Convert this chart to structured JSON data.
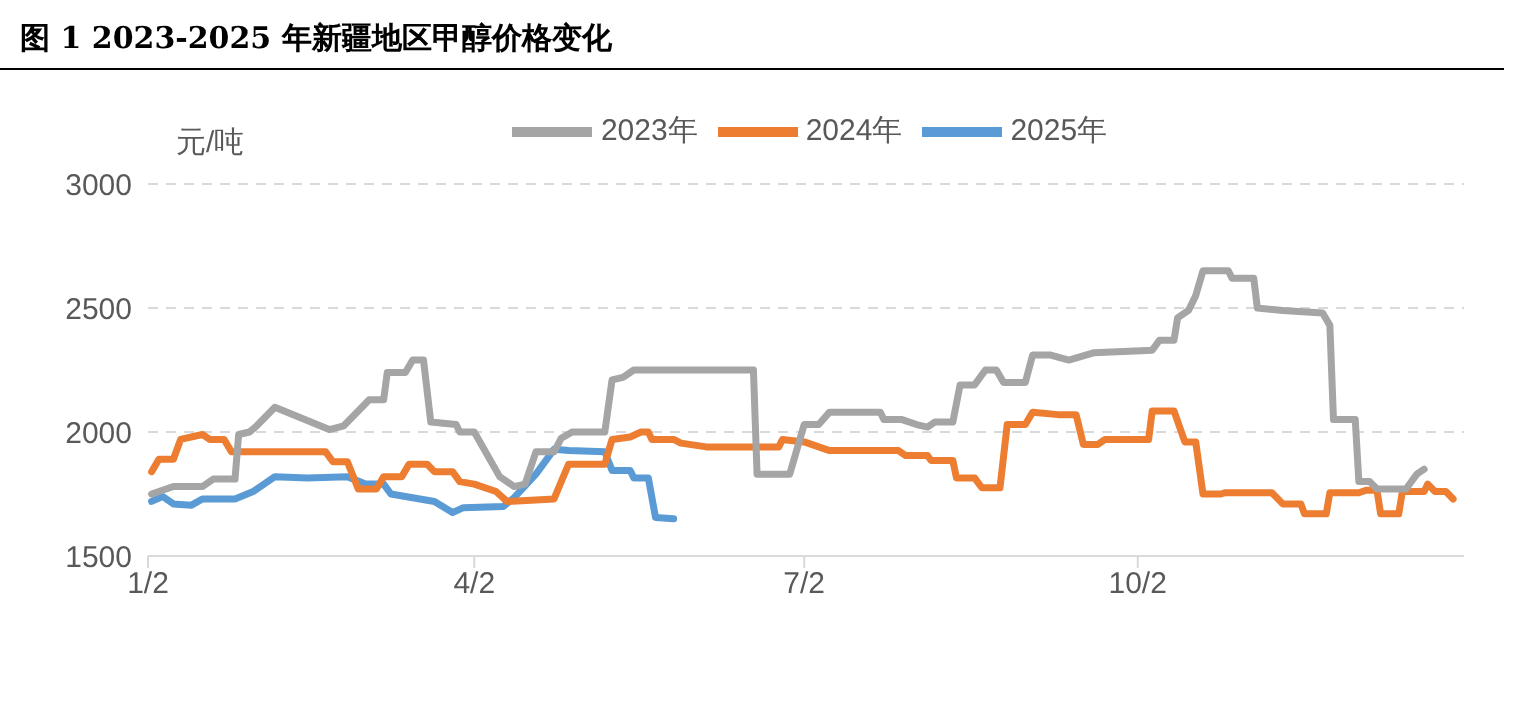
{
  "chart_data": {
    "type": "line",
    "title": "图 1 2023-2025 年新疆地区甲醇价格变化",
    "ylabel": "元/吨",
    "xlim": [
      "--01-02",
      "--12-31"
    ],
    "xticks": [
      {
        "value": "--01-02",
        "label": "1/2"
      },
      {
        "value": "--04-02",
        "label": "4/2"
      },
      {
        "value": "--07-02",
        "label": "7/2"
      },
      {
        "value": "--10-02",
        "label": "10/2"
      }
    ],
    "ylim": [
      1500,
      3000
    ],
    "yticks": [
      1500,
      2000,
      2500,
      3000
    ],
    "grid": "y",
    "legend": "top",
    "marker": "none",
    "line_style": "solid",
    "series": [
      {
        "name": "2025年",
        "color": "#5b9bd5",
        "x": [
          "--01-03",
          "--01-06",
          "--01-09",
          "--01-14",
          "--01-17",
          "--01-26",
          "--01-31",
          "--02-03",
          "--02-06",
          "--02-15",
          "--02-26",
          "--03-03",
          "--03-08",
          "--03-10",
          "--03-16",
          "--03-22",
          "--03-27",
          "--03-30",
          "--04-10",
          "--04-13",
          "--04-19",
          "--04-24",
          "--04-28",
          "--05-08",
          "--05-10",
          "--05-15",
          "--05-16",
          "--05-20",
          "--05-22",
          "--05-27"
        ],
        "values": [
          1720,
          1740,
          1710,
          1705,
          1730,
          1730,
          1760,
          1790,
          1820,
          1815,
          1820,
          1790,
          1790,
          1750,
          1735,
          1720,
          1675,
          1695,
          1700,
          1735,
          1830,
          1930,
          1925,
          1920,
          1845,
          1845,
          1815,
          1815,
          1655,
          1650
        ]
      },
      {
        "name": "2024年",
        "color": "#ed7d31",
        "x": [
          "--01-03",
          "--01-05",
          "--01-09",
          "--01-11",
          "--01-17",
          "--01-19",
          "--01-23",
          "--01-25",
          "--02-20",
          "--02-22",
          "--02-26",
          "--03-01",
          "--03-06",
          "--03-08",
          "--03-13",
          "--03-15",
          "--03-20",
          "--03-22",
          "--03-27",
          "--03-29",
          "--04-02",
          "--04-08",
          "--04-11",
          "--04-24",
          "--04-28",
          "--05-08",
          "--05-10",
          "--05-15",
          "--05-18",
          "--05-20",
          "--05-21",
          "--05-27",
          "--05-29",
          "--06-05",
          "--06-25",
          "--06-26",
          "--07-02",
          "--07-04",
          "--07-09",
          "--07-28",
          "--07-30",
          "--08-05",
          "--08-06",
          "--08-12",
          "--08-13",
          "--08-18",
          "--08-20",
          "--08-25",
          "--08-27",
          "--09-01",
          "--09-03",
          "--09-10",
          "--09-15",
          "--09-17",
          "--09-21",
          "--09-23",
          "--10-05",
          "--10-06",
          "--10-12",
          "--10-15",
          "--10-18",
          "--10-20",
          "--10-25",
          "--10-26",
          "--11-08",
          "--11-11",
          "--11-16",
          "--11-17",
          "--11-23",
          "--11-24",
          "--12-02",
          "--12-04",
          "--12-07",
          "--12-08",
          "--12-13",
          "--12-14",
          "--12-20",
          "--12-21",
          "--12-23",
          "--12-26",
          "--12-28"
        ],
        "values": [
          1840,
          1890,
          1890,
          1970,
          1990,
          1970,
          1970,
          1920,
          1920,
          1880,
          1880,
          1770,
          1770,
          1820,
          1820,
          1870,
          1870,
          1840,
          1840,
          1800,
          1790,
          1760,
          1720,
          1730,
          1870,
          1870,
          1970,
          1980,
          2000,
          2000,
          1970,
          1970,
          1955,
          1940,
          1940,
          1970,
          1960,
          1950,
          1925,
          1925,
          1905,
          1905,
          1885,
          1885,
          1815,
          1815,
          1775,
          1775,
          2030,
          2030,
          2080,
          2070,
          2070,
          1950,
          1950,
          1970,
          1970,
          2085,
          2085,
          1960,
          1960,
          1750,
          1750,
          1755,
          1755,
          1710,
          1710,
          1670,
          1670,
          1755,
          1755,
          1765,
          1765,
          1670,
          1670,
          1760,
          1760,
          1790,
          1760,
          1760,
          1730
        ]
      },
      {
        "name": "2023年",
        "color": "#a5a5a5",
        "x": [
          "--01-03",
          "--01-09",
          "--01-17",
          "--01-20",
          "--01-26",
          "--01-27",
          "--01-30",
          "--02-01",
          "--02-06",
          "--02-21",
          "--02-25",
          "--03-02",
          "--03-04",
          "--03-08",
          "--03-09",
          "--03-14",
          "--03-16",
          "--03-19",
          "--03-21",
          "--03-28",
          "--03-29",
          "--04-02",
          "--04-09",
          "--04-13",
          "--04-16",
          "--04-19",
          "--04-24",
          "--04-26",
          "--04-29",
          "--05-08",
          "--05-10",
          "--05-13",
          "--05-16",
          "--06-18",
          "--06-19",
          "--06-28",
          "--07-02",
          "--07-06",
          "--07-09",
          "--07-23",
          "--07-24",
          "--07-29",
          "--08-02",
          "--08-05",
          "--08-07",
          "--08-12",
          "--08-14",
          "--08-18",
          "--08-21",
          "--08-24",
          "--08-26",
          "--09-01",
          "--09-03",
          "--09-08",
          "--09-13",
          "--09-20",
          "--10-06",
          "--10-08",
          "--10-12",
          "--10-13",
          "--10-16",
          "--10-18",
          "--10-20",
          "--10-27",
          "--10-28",
          "--11-03",
          "--11-04",
          "--11-11",
          "--11-22",
          "--11-24",
          "--11-25",
          "--12-01",
          "--12-02",
          "--12-05",
          "--12-07",
          "--12-15",
          "--12-18",
          "--12-20"
        ],
        "values": [
          1750,
          1780,
          1780,
          1810,
          1810,
          1990,
          2000,
          2025,
          2100,
          2010,
          2025,
          2100,
          2130,
          2130,
          2240,
          2240,
          2290,
          2290,
          2040,
          2030,
          2000,
          2000,
          1820,
          1780,
          1790,
          1920,
          1920,
          1975,
          2000,
          2000,
          2210,
          2220,
          2250,
          2250,
          1830,
          1830,
          2030,
          2030,
          2080,
          2080,
          2050,
          2050,
          2030,
          2020,
          2040,
          2040,
          2190,
          2190,
          2250,
          2250,
          2200,
          2200,
          2310,
          2310,
          2290,
          2320,
          2330,
          2370,
          2370,
          2460,
          2490,
          2550,
          2650,
          2650,
          2620,
          2620,
          2500,
          2490,
          2480,
          2430,
          2050,
          2050,
          1800,
          1800,
          1770,
          1770,
          1830,
          1850
        ]
      }
    ]
  }
}
